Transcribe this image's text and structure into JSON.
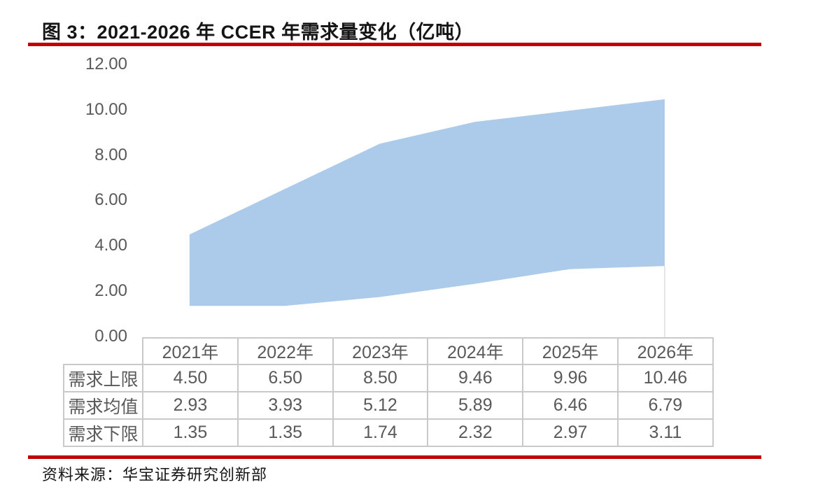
{
  "figure": {
    "title": "图 3：2021-2026 年 CCER 年需求量变化（亿吨）",
    "source": "资料来源：华宝证券研究创新部",
    "accent_color": "#C00000"
  },
  "chart_data": {
    "type": "area",
    "title": "2021-2026 年 CCER 年需求量变化（亿吨）",
    "categories": [
      "2021年",
      "2022年",
      "2023年",
      "2024年",
      "2025年",
      "2026年"
    ],
    "series": [
      {
        "name": "需求上限",
        "values": [
          4.5,
          6.5,
          8.5,
          9.46,
          9.96,
          10.46
        ]
      },
      {
        "name": "需求均值",
        "values": [
          2.93,
          3.93,
          5.12,
          5.89,
          6.46,
          6.79
        ]
      },
      {
        "name": "需求下限",
        "values": [
          1.35,
          1.35,
          1.74,
          2.32,
          2.97,
          3.11
        ]
      }
    ],
    "band": {
      "upper": "需求上限",
      "lower": "需求下限"
    },
    "ylim": [
      0,
      12
    ],
    "yticks": [
      "12.00",
      "10.00",
      "8.00",
      "6.00",
      "4.00",
      "2.00",
      "0.00"
    ],
    "grid": false,
    "legend_position": "none",
    "area_color": "#accbea"
  },
  "table": {
    "corner": "",
    "col_headers": [
      "2021年",
      "2022年",
      "2023年",
      "2024年",
      "2025年",
      "2026年"
    ],
    "rows": [
      {
        "label": "需求上限",
        "values": [
          "4.50",
          "6.50",
          "8.50",
          "9.46",
          "9.96",
          "10.46"
        ]
      },
      {
        "label": "需求均值",
        "values": [
          "2.93",
          "3.93",
          "5.12",
          "5.89",
          "6.46",
          "6.79"
        ]
      },
      {
        "label": "需求下限",
        "values": [
          "1.35",
          "1.35",
          "1.74",
          "2.32",
          "2.97",
          "3.11"
        ]
      }
    ]
  },
  "colors": {
    "accent_red": "#C00000",
    "area_fill": "#accbea",
    "text_gray": "#595959",
    "table_border": "#c9c9c9"
  }
}
